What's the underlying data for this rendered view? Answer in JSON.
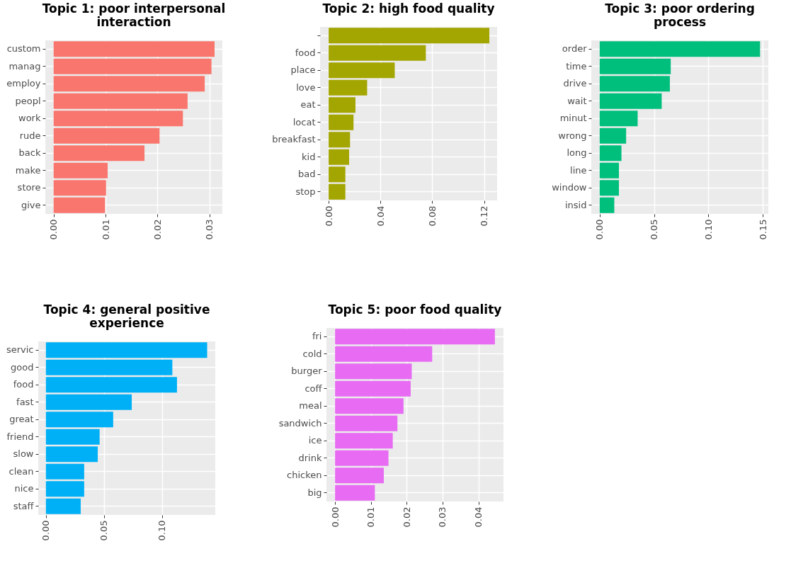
{
  "chart_data": [
    {
      "type": "bar",
      "orientation": "horizontal",
      "title": "Topic 1: poor interpersonal interaction",
      "categories": [
        "custom",
        "manag",
        "employ",
        "peopl",
        "work",
        "rude",
        "back",
        "make",
        "store",
        "give"
      ],
      "values": [
        0.031,
        0.0304,
        0.0291,
        0.0258,
        0.0249,
        0.0204,
        0.0175,
        0.0104,
        0.0101,
        0.0099
      ],
      "color": "#f8766d",
      "xlim": [
        -0.0016,
        0.0325
      ],
      "xticks": [
        {
          "value": 0,
          "label": "0.00"
        },
        {
          "value": 0.01,
          "label": "0.01"
        },
        {
          "value": 0.02,
          "label": "0.02"
        },
        {
          "value": 0.03,
          "label": "0.03"
        }
      ],
      "grid": true
    },
    {
      "type": "bar",
      "orientation": "horizontal",
      "title": "Topic 2: high food quality",
      "categories": [
        null,
        "food",
        "place",
        "love",
        "eat",
        "locat",
        "breakfast",
        "kid",
        "bad",
        "stop"
      ],
      "values": [
        0.124,
        0.075,
        0.051,
        0.0297,
        0.0207,
        0.0192,
        0.0165,
        0.0158,
        0.0129,
        0.0129
      ],
      "color": "#a3a500",
      "xlim": [
        -0.0066,
        0.13
      ],
      "xticks": [
        {
          "value": 0,
          "label": "0.00"
        },
        {
          "value": 0.04,
          "label": "0.04"
        },
        {
          "value": 0.08,
          "label": "0.08"
        },
        {
          "value": 0.12,
          "label": "0.12"
        }
      ],
      "grid": true
    },
    {
      "type": "bar",
      "orientation": "horizontal",
      "title": "Topic 3: poor ordering process",
      "categories": [
        "order",
        "time",
        "drive",
        "wait",
        "minut",
        "wrong",
        "long",
        "line",
        "window",
        "insid"
      ],
      "values": [
        0.1474,
        0.0653,
        0.0645,
        0.057,
        0.0349,
        0.0243,
        0.02,
        0.0177,
        0.0177,
        0.0134
      ],
      "color": "#00bf7d",
      "xlim": [
        -0.0077,
        0.155
      ],
      "xticks": [
        {
          "value": 0,
          "label": "0.00"
        },
        {
          "value": 0.05,
          "label": "0.05"
        },
        {
          "value": 0.1,
          "label": "0.10"
        },
        {
          "value": 0.15,
          "label": "0.15"
        }
      ],
      "grid": true
    },
    {
      "type": "bar",
      "orientation": "horizontal",
      "title": "Topic 4: general positive experience",
      "categories": [
        "servic",
        "good",
        "food",
        "fast",
        "great",
        "friend",
        "slow",
        "clean",
        "nice",
        "staff"
      ],
      "values": [
        0.139,
        0.109,
        0.113,
        0.074,
        0.058,
        0.0463,
        0.0447,
        0.033,
        0.033,
        0.03
      ],
      "color": "#00b0f6",
      "xlim": [
        -0.0066,
        0.146
      ],
      "xticks": [
        {
          "value": 0,
          "label": "0.00"
        },
        {
          "value": 0.05,
          "label": "0.05"
        },
        {
          "value": 0.1,
          "label": "0.10"
        }
      ],
      "grid": true
    },
    {
      "type": "bar",
      "orientation": "horizontal",
      "title": "Topic 5: poor food quality",
      "categories": [
        "fri",
        "cold",
        "burger",
        "coff",
        "meal",
        "sandwich",
        "ice",
        "drink",
        "chicken",
        "big"
      ],
      "values": [
        0.0446,
        0.0271,
        0.0214,
        0.0211,
        0.0191,
        0.0174,
        0.0161,
        0.0149,
        0.0136,
        0.0111
      ],
      "color": "#e76bf3",
      "xlim": [
        -0.0024,
        0.047
      ],
      "xticks": [
        {
          "value": 0,
          "label": "0.00"
        },
        {
          "value": 0.01,
          "label": "0.01"
        },
        {
          "value": 0.02,
          "label": "0.02"
        },
        {
          "value": 0.03,
          "label": "0.03"
        },
        {
          "value": 0.04,
          "label": "0.04"
        }
      ],
      "grid": true
    }
  ]
}
